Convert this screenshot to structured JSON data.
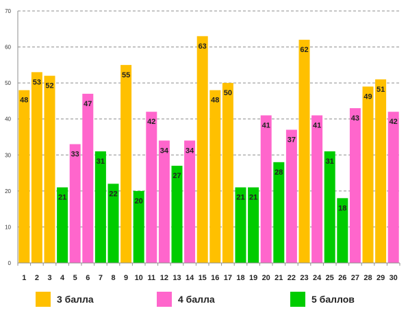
{
  "chart_data": {
    "type": "bar",
    "categories": [
      "1",
      "2",
      "3",
      "4",
      "5",
      "6",
      "7",
      "8",
      "9",
      "10",
      "11",
      "12",
      "13",
      "14",
      "15",
      "16",
      "17",
      "18",
      "19",
      "20",
      "21",
      "22",
      "23",
      "24",
      "25",
      "26",
      "27",
      "28",
      "29",
      "30"
    ],
    "values": [
      48,
      53,
      52,
      21,
      33,
      47,
      31,
      22,
      55,
      20,
      42,
      34,
      27,
      34,
      63,
      48,
      50,
      21,
      21,
      41,
      28,
      37,
      62,
      41,
      31,
      18,
      43,
      49,
      51,
      42
    ],
    "groups": [
      3,
      3,
      3,
      5,
      4,
      4,
      5,
      5,
      3,
      5,
      4,
      4,
      5,
      4,
      3,
      3,
      3,
      5,
      5,
      4,
      5,
      4,
      3,
      4,
      5,
      5,
      4,
      3,
      3,
      4
    ],
    "ylim": [
      0,
      70
    ],
    "yticks": [
      "0",
      "10",
      "20",
      "30",
      "40",
      "50",
      "60",
      "70"
    ],
    "grid": true,
    "legend_position": "bottom",
    "series": [
      {
        "key": 3,
        "name": "3 балла",
        "color": "#FFC000"
      },
      {
        "key": 4,
        "name": "4 балла",
        "color": "#FF66CC"
      },
      {
        "key": 5,
        "name": "5 баллов",
        "color": "#00CC00"
      }
    ]
  }
}
